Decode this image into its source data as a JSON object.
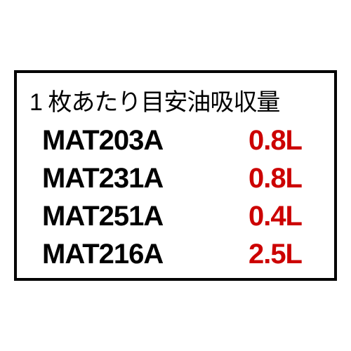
{
  "label": {
    "title": "1 枚あたり目安油吸収量",
    "title_fontsize": 34,
    "title_color": "#000000",
    "border_color": "#000000",
    "border_width": 4,
    "background_color": "#ffffff",
    "code_color": "#000000",
    "value_color": "#cc0000",
    "row_fontsize": 40,
    "row_fontweight": "bold",
    "rows": [
      {
        "code": "MAT203A",
        "value": "0.8L"
      },
      {
        "code": "MAT231A",
        "value": "0.8L"
      },
      {
        "code": "MAT251A",
        "value": "0.4L"
      },
      {
        "code": "MAT216A",
        "value": "2.5L"
      }
    ]
  }
}
